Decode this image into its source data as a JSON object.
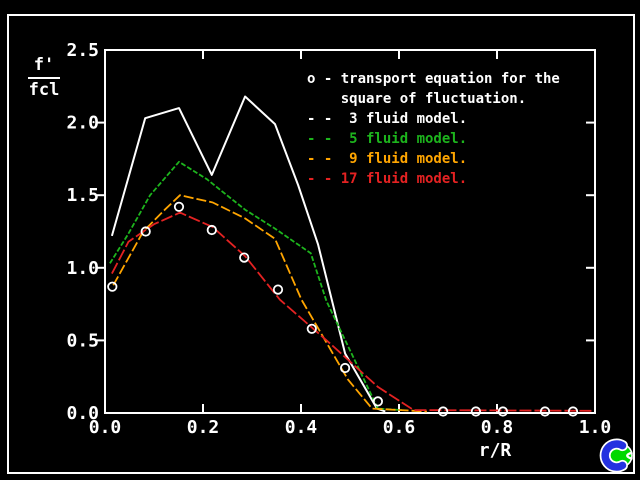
{
  "canvas": {
    "background": "#000000",
    "border_color": "#ffffff"
  },
  "axes": {
    "y_label_numerator": "f'",
    "y_label_denominator": "fcl",
    "x_label": "r/R",
    "tick_color": "#ffffff"
  },
  "legend": {
    "lines": [
      {
        "text": "o - transport equation for the",
        "color": "#ffffff"
      },
      {
        "text": "    square of fluctuation.",
        "color": "#ffffff"
      },
      {
        "text": "- -  3 fluid model.",
        "color": "#ffffff"
      },
      {
        "text": "- -  5 fluid model.",
        "color": "#1db41d"
      },
      {
        "text": "- -  9 fluid model.",
        "color": "#ffa500"
      },
      {
        "text": "- - 17 fluid model.",
        "color": "#e42222"
      }
    ]
  },
  "chart_data": {
    "type": "line",
    "title": "",
    "xlabel": "r/R",
    "ylabel": "f'/fcl",
    "xlim": [
      0.0,
      1.0
    ],
    "ylim": [
      0.0,
      2.5
    ],
    "xticks": [
      "0.0",
      "0.2",
      "0.4",
      "0.6",
      "0.8",
      "1.0"
    ],
    "yticks": [
      "0.0",
      "0.5",
      "1.0",
      "1.5",
      "2.0",
      "2.5"
    ],
    "grid": false,
    "legend_position": "upper-right",
    "series": [
      {
        "name": "3 fluid model",
        "color": "#ffffff",
        "dash": "none",
        "width": 2,
        "points": [
          [
            0.014,
            1.22
          ],
          [
            0.082,
            2.03
          ],
          [
            0.151,
            2.1
          ],
          [
            0.218,
            1.64
          ],
          [
            0.286,
            2.18
          ],
          [
            0.347,
            1.99
          ],
          [
            0.394,
            1.57
          ],
          [
            0.435,
            1.16
          ],
          [
            0.49,
            0.41
          ],
          [
            0.555,
            0.03
          ],
          [
            0.572,
            0.01
          ]
        ]
      },
      {
        "name": "5 fluid model",
        "color": "#1db41d",
        "dash": "5 2",
        "width": 1.8,
        "points": [
          [
            0.01,
            1.03
          ],
          [
            0.047,
            1.23
          ],
          [
            0.092,
            1.5
          ],
          [
            0.151,
            1.73
          ],
          [
            0.208,
            1.61
          ],
          [
            0.286,
            1.4
          ],
          [
            0.347,
            1.27
          ],
          [
            0.42,
            1.1
          ],
          [
            0.452,
            0.77
          ],
          [
            0.557,
            0.03
          ],
          [
            0.606,
            0.02
          ]
        ]
      },
      {
        "name": "9 fluid model",
        "color": "#ffa500",
        "dash": "10 3",
        "width": 1.8,
        "points": [
          [
            0.017,
            0.88
          ],
          [
            0.078,
            1.25
          ],
          [
            0.122,
            1.4
          ],
          [
            0.153,
            1.5
          ],
          [
            0.22,
            1.45
          ],
          [
            0.286,
            1.34
          ],
          [
            0.347,
            1.2
          ],
          [
            0.401,
            0.78
          ],
          [
            0.496,
            0.23
          ],
          [
            0.545,
            0.03
          ],
          [
            0.657,
            0.01
          ]
        ]
      },
      {
        "name": "17 fluid model",
        "color": "#e42222",
        "dash": "12 3",
        "width": 1.8,
        "points": [
          [
            0.014,
            0.96
          ],
          [
            0.048,
            1.18
          ],
          [
            0.1,
            1.3
          ],
          [
            0.153,
            1.38
          ],
          [
            0.22,
            1.28
          ],
          [
            0.286,
            1.08
          ],
          [
            0.357,
            0.78
          ],
          [
            0.459,
            0.48
          ],
          [
            0.557,
            0.18
          ],
          [
            0.63,
            0.02
          ],
          [
            0.995,
            0.015
          ]
        ]
      }
    ],
    "scatter": {
      "name": "transport equation for the square of fluctuation",
      "marker": "circle",
      "color": "#ffffff",
      "points": [
        [
          0.015,
          0.87
        ],
        [
          0.083,
          1.25
        ],
        [
          0.151,
          1.42
        ],
        [
          0.218,
          1.26
        ],
        [
          0.284,
          1.07
        ],
        [
          0.353,
          0.85
        ],
        [
          0.422,
          0.58
        ],
        [
          0.49,
          0.31
        ],
        [
          0.557,
          0.08
        ],
        [
          0.69,
          0.01
        ],
        [
          0.757,
          0.01
        ],
        [
          0.812,
          0.01
        ],
        [
          0.898,
          0.01
        ],
        [
          0.955,
          0.01
        ]
      ]
    }
  },
  "logo": {
    "description": "plotting-software-logo",
    "colors": {
      "ball": "#00d800",
      "swoosh": "#2431e0",
      "outline": "#ffffff"
    }
  }
}
